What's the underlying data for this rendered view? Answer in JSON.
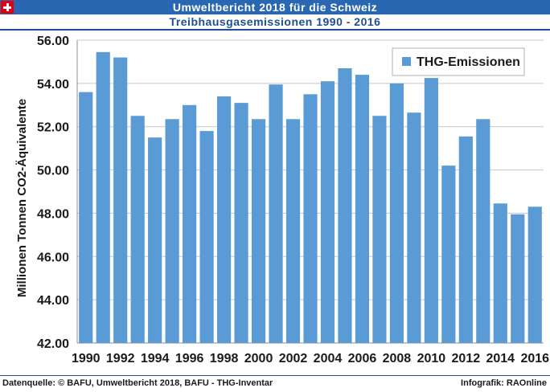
{
  "header": {
    "title": "Umweltbericht 2018 für die Schweiz",
    "subtitle": "Treibhausgasemissionen 1990 - 2016",
    "flag_color": "#e3000f",
    "bar_color": "#2a67b2"
  },
  "footer": {
    "source": "Datenquelle: © BAFU, Umweltbericht 2018, BAFU - THG-Inventar",
    "credit": "Infografik: RAOnline"
  },
  "chart_data": {
    "type": "bar",
    "title": "",
    "xlabel": "",
    "ylabel": "Millionen Tonnen CO2-Äquivalente",
    "ylim": [
      42,
      56
    ],
    "yticks": [
      "42.00",
      "44.00",
      "46.00",
      "48.00",
      "50.00",
      "52.00",
      "54.00",
      "56.00"
    ],
    "x_tick_labels": [
      "1990",
      "1992",
      "1994",
      "1996",
      "1998",
      "2000",
      "2002",
      "2004",
      "2006",
      "2008",
      "2010",
      "2012",
      "2014",
      "2016"
    ],
    "categories": [
      1990,
      1991,
      1992,
      1993,
      1994,
      1995,
      1996,
      1997,
      1998,
      1999,
      2000,
      2001,
      2002,
      2003,
      2004,
      2005,
      2006,
      2007,
      2008,
      2009,
      2010,
      2011,
      2012,
      2013,
      2014,
      2015,
      2016
    ],
    "series": [
      {
        "name": "THG-Emissionen",
        "color": "#5b9bd5",
        "values": [
          53.6,
          55.45,
          55.2,
          52.5,
          51.5,
          52.35,
          53.0,
          51.8,
          53.4,
          53.1,
          52.35,
          53.95,
          52.35,
          53.5,
          54.1,
          54.7,
          54.4,
          52.5,
          54.0,
          52.65,
          54.25,
          50.2,
          51.55,
          52.35,
          48.45,
          47.95,
          48.3
        ]
      }
    ],
    "legend_position": "top-right",
    "grid": true
  }
}
